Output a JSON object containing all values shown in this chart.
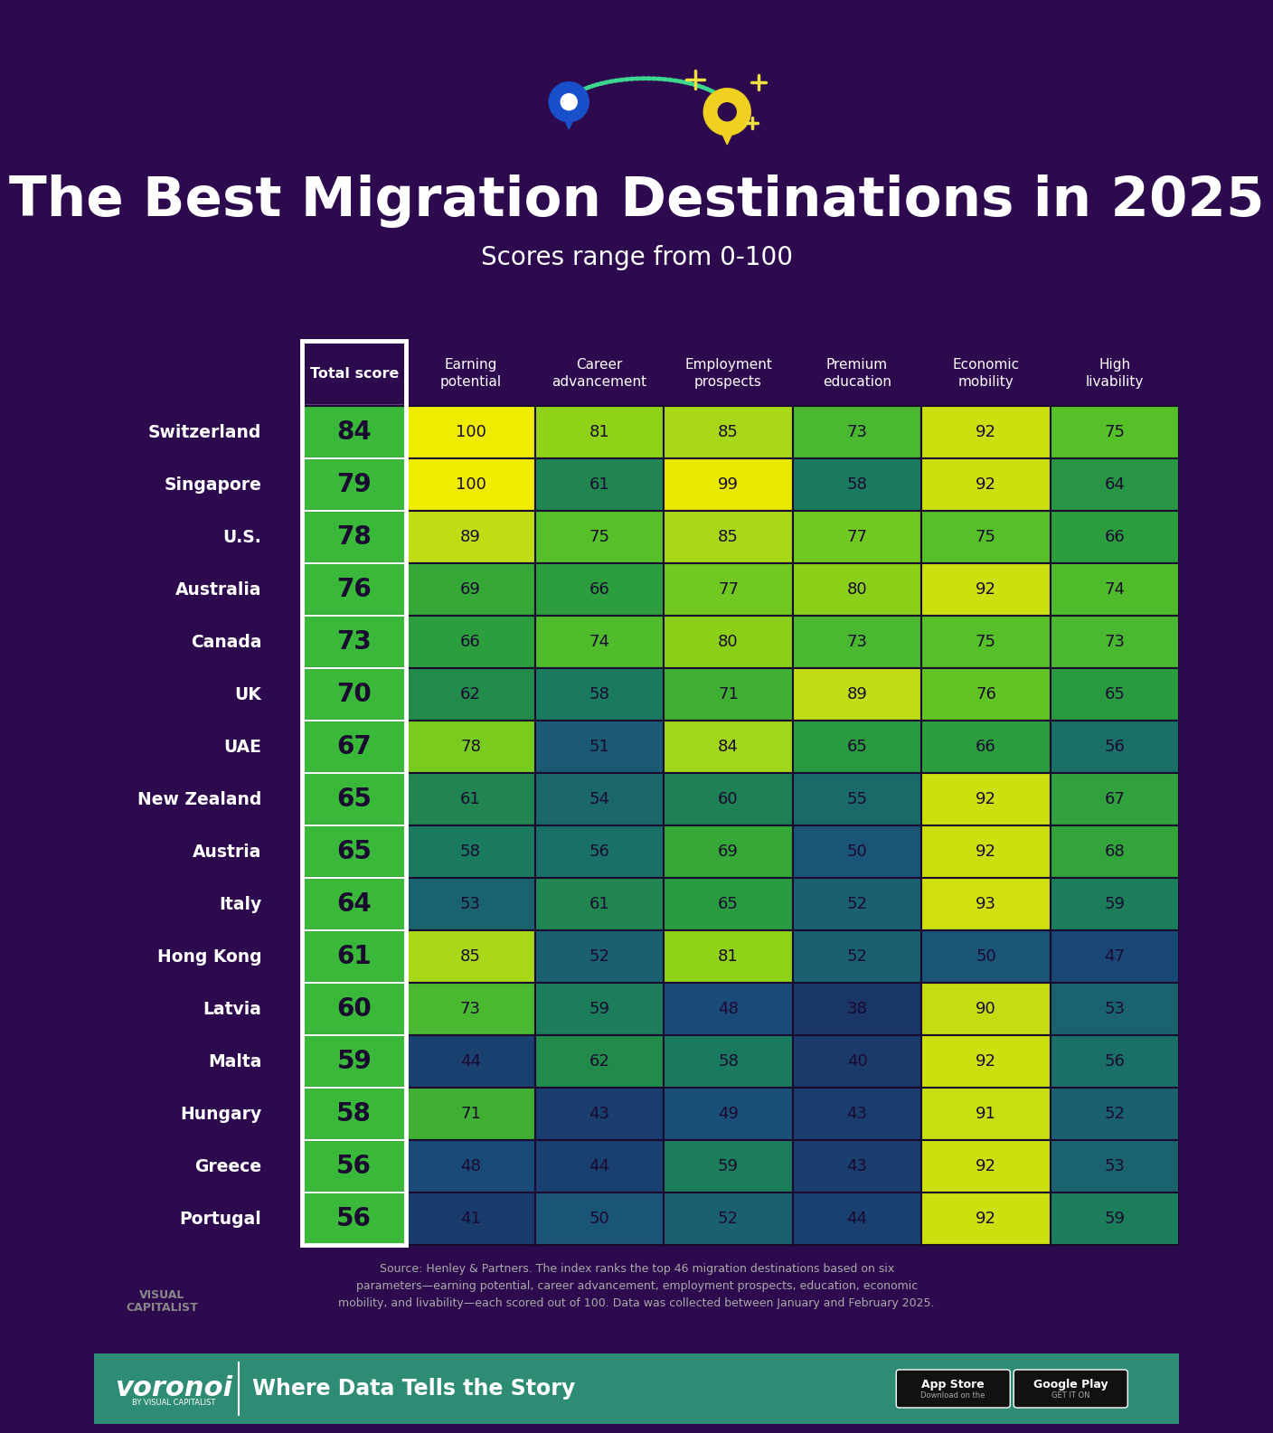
{
  "title": "The Best Migration Destinations in 2025",
  "subtitle": "Scores range from 0-100",
  "bg_color": "#2d0a4e",
  "footer_bg": "#2e8b74",
  "col_headers": [
    "Total score",
    "Earning\npotential",
    "Career\nadvancement",
    "Employment\nprospects",
    "Premium\neducation",
    "Economic\nmobility",
    "High\nlivability"
  ],
  "countries": [
    "Switzerland",
    "Singapore",
    "U.S.",
    "Australia",
    "Canada",
    "UK",
    "UAE",
    "New Zealand",
    "Austria",
    "Italy",
    "Hong Kong",
    "Latvia",
    "Malta",
    "Hungary",
    "Greece",
    "Portugal"
  ],
  "total_scores": [
    84,
    79,
    78,
    76,
    73,
    70,
    67,
    65,
    65,
    64,
    61,
    60,
    59,
    58,
    56,
    56
  ],
  "data": [
    [
      100,
      81,
      85,
      73,
      92,
      75
    ],
    [
      100,
      61,
      99,
      58,
      92,
      64
    ],
    [
      89,
      75,
      85,
      77,
      75,
      66
    ],
    [
      69,
      66,
      77,
      80,
      92,
      74
    ],
    [
      66,
      74,
      80,
      73,
      75,
      73
    ],
    [
      62,
      58,
      71,
      89,
      76,
      65
    ],
    [
      78,
      51,
      84,
      65,
      66,
      56
    ],
    [
      61,
      54,
      60,
      55,
      92,
      67
    ],
    [
      58,
      56,
      69,
      50,
      92,
      68
    ],
    [
      53,
      61,
      65,
      52,
      93,
      59
    ],
    [
      85,
      52,
      81,
      52,
      50,
      47
    ],
    [
      73,
      59,
      48,
      38,
      90,
      53
    ],
    [
      44,
      62,
      58,
      40,
      92,
      56
    ],
    [
      71,
      43,
      49,
      43,
      91,
      52
    ],
    [
      48,
      44,
      59,
      43,
      92,
      53
    ],
    [
      41,
      50,
      52,
      44,
      92,
      59
    ]
  ],
  "source_text": "Source: Henley & Partners. The index ranks the top 46 migration destinations based on six\nparameters—earning potential, career advancement, employment prospects, education, economic\nmobility, and livability—each scored out of 100. Data was collected between January and February 2025.",
  "footer_text": "Where Data Tells the Story",
  "color_stops": [
    [
      35,
      "#1a3060"
    ],
    [
      40,
      "#1a3a6a"
    ],
    [
      44,
      "#1a4070"
    ],
    [
      48,
      "#1a4a78"
    ],
    [
      50,
      "#1a5578"
    ],
    [
      52,
      "#1a6070"
    ],
    [
      55,
      "#1a6a6a"
    ],
    [
      58,
      "#1a7a60"
    ],
    [
      60,
      "#1e8055"
    ],
    [
      62,
      "#228a4a"
    ],
    [
      65,
      "#2a9a40"
    ],
    [
      69,
      "#35a838"
    ],
    [
      73,
      "#4ab830"
    ],
    [
      75,
      "#55c028"
    ],
    [
      77,
      "#70c820"
    ],
    [
      80,
      "#8ad018"
    ],
    [
      85,
      "#a8d818"
    ],
    [
      89,
      "#c0dc14"
    ],
    [
      92,
      "#cce010"
    ],
    [
      93,
      "#d0e00e"
    ],
    [
      99,
      "#e8e800"
    ],
    [
      100,
      "#f0ec00"
    ]
  ]
}
